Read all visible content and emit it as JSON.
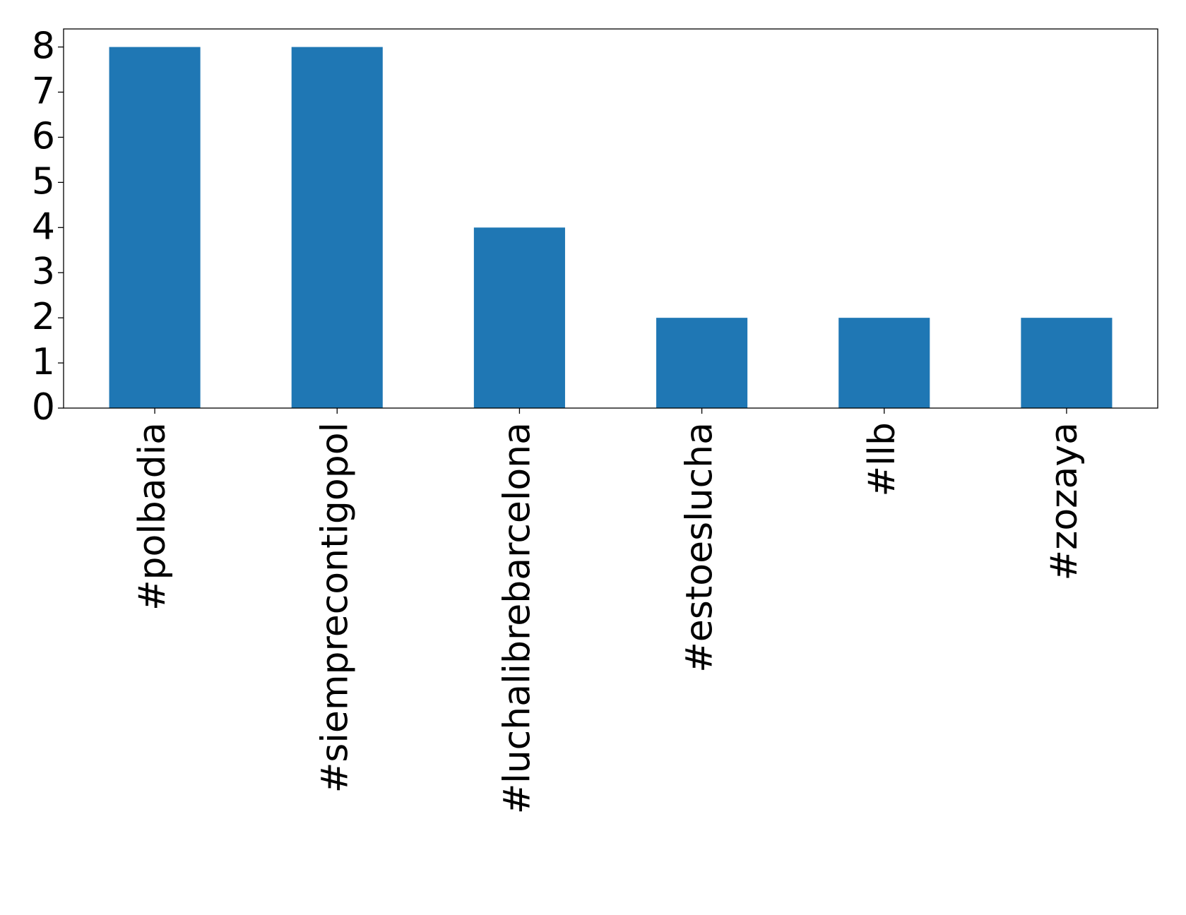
{
  "chart_data": {
    "type": "bar",
    "categories": [
      "#polbadia",
      "#siemprecontigopol",
      "#luchalibrebarcelona",
      "#estoeslucha",
      "#llb",
      "#zozaya"
    ],
    "values": [
      8,
      8,
      4,
      2,
      2,
      2
    ],
    "color": "#1f77b4",
    "ylim": [
      0,
      8.4
    ],
    "yticks": [
      0,
      1,
      2,
      3,
      4,
      5,
      6,
      7,
      8
    ],
    "grid": false
  }
}
